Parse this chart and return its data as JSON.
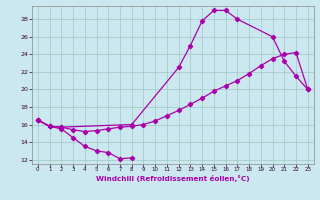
{
  "xlabel": "Windchill (Refroidissement éolien,°C)",
  "background_color": "#cbe8f0",
  "grid_color": "#a0c8c0",
  "line_color": "#aa00aa",
  "xlim": [
    -0.5,
    23.5
  ],
  "ylim": [
    11.5,
    29.5
  ],
  "xticks": [
    0,
    1,
    2,
    3,
    4,
    5,
    6,
    7,
    8,
    9,
    10,
    11,
    12,
    13,
    14,
    15,
    16,
    17,
    18,
    19,
    20,
    21,
    22,
    23
  ],
  "yticks": [
    12,
    14,
    16,
    18,
    20,
    22,
    24,
    26,
    28
  ],
  "line1_x": [
    0,
    1,
    2,
    3,
    4,
    5,
    6,
    7,
    8
  ],
  "line1_y": [
    16.5,
    15.8,
    15.5,
    14.5,
    13.5,
    13.0,
    12.8,
    12.1,
    12.2
  ],
  "line2_x": [
    0,
    1,
    2,
    3,
    4,
    5,
    6,
    7,
    8,
    9,
    10,
    11,
    12,
    13,
    14,
    15,
    16,
    17,
    18,
    19,
    20,
    21,
    22,
    23
  ],
  "line2_y": [
    16.5,
    15.8,
    15.7,
    15.4,
    15.2,
    15.3,
    15.5,
    15.7,
    15.8,
    16.0,
    16.4,
    17.0,
    17.6,
    18.3,
    19.0,
    19.8,
    20.4,
    21.0,
    21.8,
    22.7,
    23.5,
    24.0,
    24.2,
    20.0
  ],
  "line3_x": [
    0,
    1,
    2,
    8,
    12,
    13,
    14,
    15,
    16,
    17,
    20,
    21,
    22,
    23
  ],
  "line3_y": [
    16.5,
    15.8,
    15.7,
    16.0,
    22.5,
    25.0,
    27.8,
    29.0,
    29.0,
    28.0,
    26.0,
    23.2,
    21.5,
    20.0
  ]
}
